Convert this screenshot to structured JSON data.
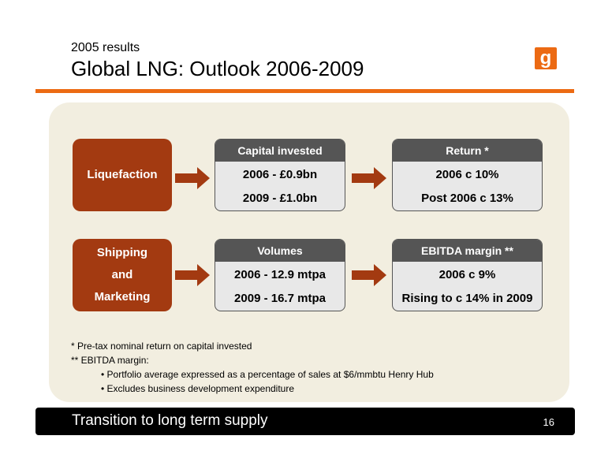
{
  "header": {
    "subtitle": "2005 results",
    "title": "Global LNG: Outlook 2006-2009",
    "logo_text": "g"
  },
  "rows": [
    {
      "category": [
        "Liquefaction"
      ],
      "card1": {
        "title": "Capital invested",
        "lines": [
          "2006 - £0.9bn",
          "2009 - £1.0bn"
        ]
      },
      "card2": {
        "title": "Return *",
        "lines": [
          "2006 c 10%",
          "Post 2006 c 13%"
        ]
      }
    },
    {
      "category": [
        "Shipping",
        "and",
        "Marketing"
      ],
      "card1": {
        "title": "Volumes",
        "lines": [
          "2006 - 12.9 mtpa",
          "2009 - 16.7 mtpa"
        ]
      },
      "card2": {
        "title": "EBITDA margin **",
        "lines": [
          "2006 c 9%",
          "Rising to c 14% in 2009"
        ]
      }
    }
  ],
  "notes": {
    "note1": "* Pre-tax nominal return on capital invested",
    "note2": "** EBITDA margin:",
    "bullets": [
      "• Portfolio average expressed as a percentage of sales at $6/mmbtu Henry Hub",
      "• Excludes business development expenditure"
    ]
  },
  "footer": {
    "text": "Transition to long term supply",
    "page": "16"
  },
  "colors": {
    "accent": "#ec6a13",
    "category_box": "#a33a11",
    "card_header": "#555555",
    "panel_bg": "#f2eee0"
  }
}
